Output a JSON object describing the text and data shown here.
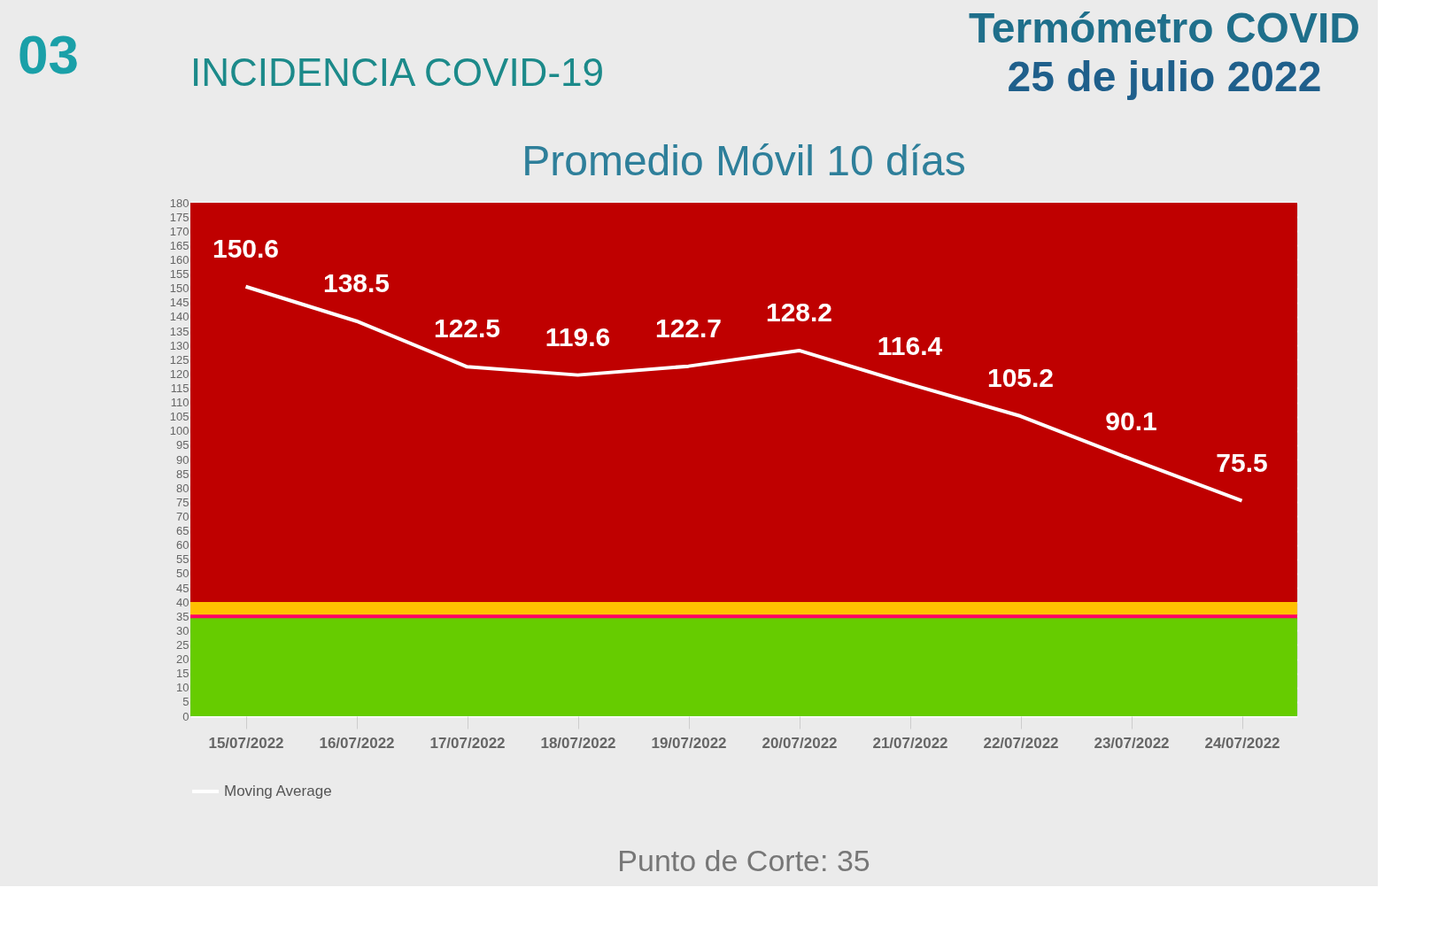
{
  "chart_data": {
    "type": "line",
    "title": "Promedio Móvil 10 días",
    "annotations": [
      "03",
      "INCIDENCIA COVID-19",
      "Termómetro COVID",
      "25 de julio 2022",
      "Punto de Corte: 35"
    ],
    "categories": [
      "15/07/2022",
      "16/07/2022",
      "17/07/2022",
      "18/07/2022",
      "19/07/2022",
      "20/07/2022",
      "21/07/2022",
      "22/07/2022",
      "23/07/2022",
      "24/07/2022"
    ],
    "series": [
      {
        "name": "Moving Average",
        "color": "#ffffff",
        "values": [
          150.6,
          138.5,
          122.5,
          119.6,
          122.7,
          128.2,
          116.4,
          105.2,
          90.1,
          75.5
        ]
      }
    ],
    "ylim": [
      0,
      180
    ],
    "yticks": [
      0,
      5,
      10,
      15,
      20,
      25,
      30,
      35,
      40,
      45,
      50,
      55,
      60,
      65,
      70,
      75,
      80,
      85,
      90,
      95,
      100,
      105,
      110,
      115,
      120,
      125,
      130,
      135,
      140,
      145,
      150,
      155,
      160,
      165,
      170,
      175,
      180
    ],
    "grid": "y",
    "legend": "bottom",
    "data_labels": true,
    "marker": "none",
    "line_style": "solid",
    "bands": [
      {
        "axis": "y",
        "from": 40,
        "to": 180,
        "color": "#bf0000"
      },
      {
        "axis": "y",
        "from": 35,
        "to": 40,
        "color": "#ffc000"
      },
      {
        "axis": "y",
        "from": 0,
        "to": 35,
        "color": "#66cc00"
      }
    ],
    "ref_lines": [
      {
        "axis": "y",
        "value": 35,
        "color": "#ff0066",
        "line_style": "solid"
      }
    ]
  }
}
